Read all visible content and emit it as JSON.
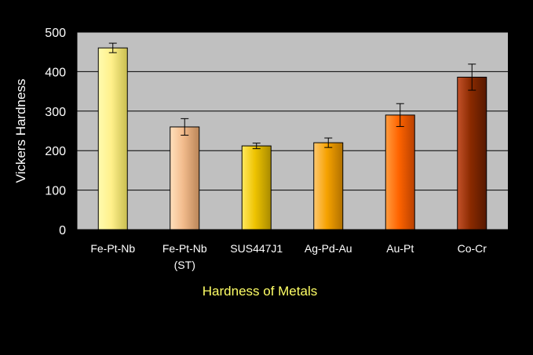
{
  "chart_data": {
    "type": "bar",
    "title": "",
    "xlabel": "Hardness of Metals",
    "ylabel": "Vickers Hardness",
    "ylim": [
      0,
      500
    ],
    "yticks": [
      "0",
      "100",
      "200",
      "300",
      "400",
      "500"
    ],
    "grid": true,
    "legend": "none",
    "categories": [
      {
        "line1": "Fe-Pt-Nb",
        "line2": ""
      },
      {
        "line1": "Fe-Pt-Nb",
        "line2": "(ST)"
      },
      {
        "line1": "SUS447J1",
        "line2": ""
      },
      {
        "line1": "Ag-Pd-Au",
        "line2": ""
      },
      {
        "line1": "Au-Pt",
        "line2": ""
      },
      {
        "line1": "Co-Cr",
        "line2": ""
      }
    ],
    "values": [
      460,
      260,
      212,
      220,
      290,
      386
    ],
    "errors": [
      12,
      21,
      7,
      12,
      29,
      33
    ],
    "colors": [
      [
        "#fffbb0",
        "#fff08a",
        "#c8bd50"
      ],
      [
        "#ffe0bc",
        "#f2bb8c",
        "#bb8658"
      ],
      [
        "#ffe860",
        "#eec300",
        "#a88a00"
      ],
      [
        "#ffc870",
        "#f6a200",
        "#b07000"
      ],
      [
        "#ff9d40",
        "#ff6400",
        "#b84000"
      ],
      [
        "#c4522a",
        "#8a2a00",
        "#561800"
      ]
    ],
    "plot_background": "#c0c0c0",
    "page_background": "#000000"
  }
}
